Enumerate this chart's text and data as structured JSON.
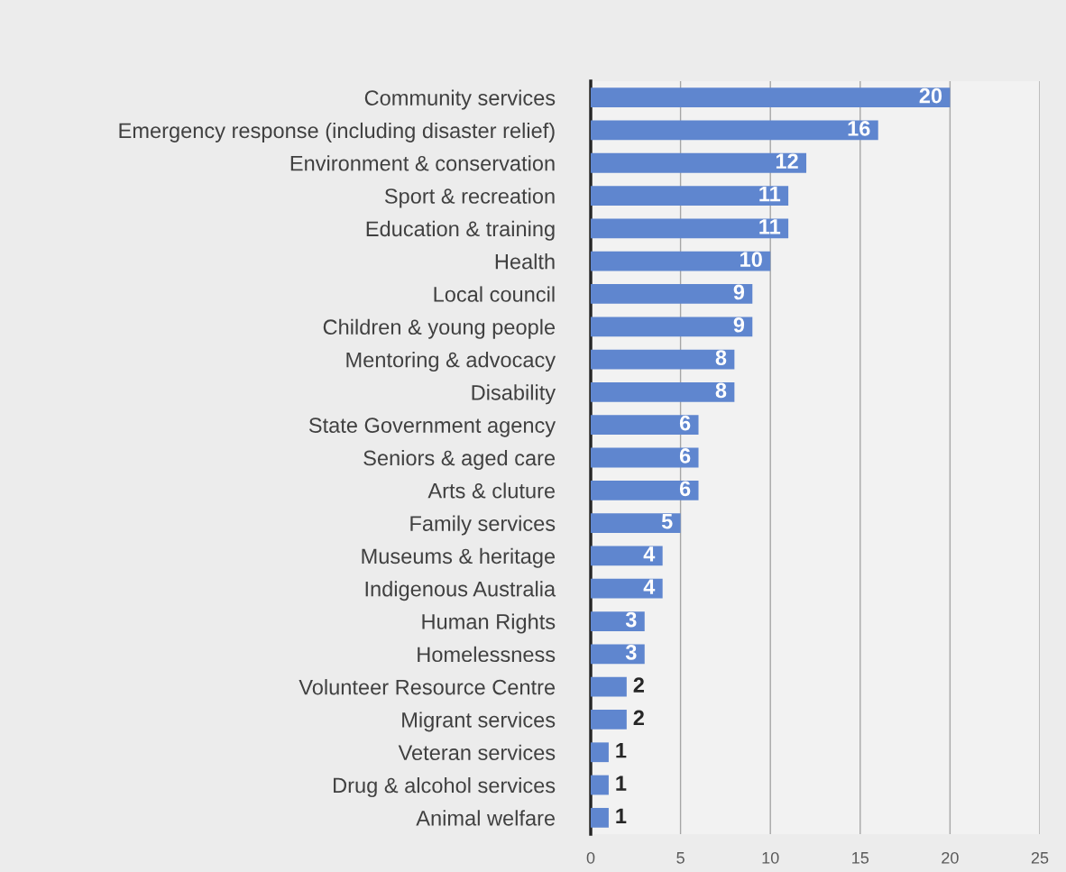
{
  "chart_data": {
    "type": "bar",
    "orientation": "horizontal",
    "categories": [
      "Community services",
      "Emergency response (including disaster relief)",
      "Environment & conservation",
      "Sport & recreation",
      "Education & training",
      "Health",
      "Local council",
      "Children & young people",
      "Mentoring & advocacy",
      "Disability",
      "State Government agency",
      "Seniors & aged care",
      "Arts & cluture",
      "Family services",
      "Museums & heritage",
      "Indigenous Australia",
      "Human Rights",
      "Homelessness",
      "Volunteer Resource Centre",
      "Migrant services",
      "Veteran services",
      "Drug & alcohol services",
      "Animal welfare"
    ],
    "values": [
      20,
      16,
      12,
      11,
      11,
      10,
      9,
      9,
      8,
      8,
      6,
      6,
      6,
      5,
      4,
      4,
      3,
      3,
      2,
      2,
      1,
      1,
      1
    ],
    "color": "#5f86cf",
    "xlim": [
      0,
      25
    ],
    "xticks": [
      0,
      5,
      10,
      15,
      20,
      25
    ],
    "grid": "x",
    "data_labels": true
  }
}
